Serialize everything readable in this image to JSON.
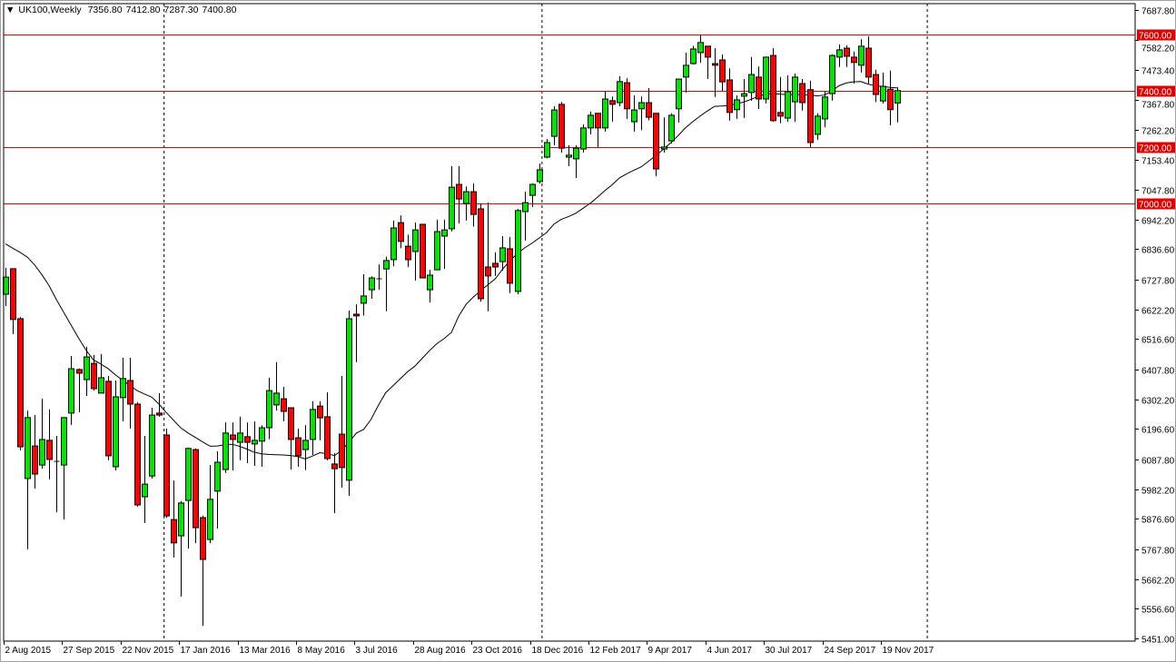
{
  "header": {
    "menu_icon": "triangle-down-icon",
    "symbol_period": "UK100,Weekly",
    "open": "7356.80",
    "high": "7412.80",
    "low": "7287.30",
    "close": "7400.80"
  },
  "colors": {
    "bull": "#00e600",
    "bear": "#ff0000",
    "level_line": "#e00000",
    "ma_line": "#000000",
    "grid_separator": "#000000"
  },
  "chart_data": {
    "type": "candlestick",
    "title": "UK100,Weekly",
    "ylim": [
      5451.0,
      7687.8
    ],
    "grid": false,
    "price_ticks": [
      "7687.80",
      "7582.20",
      "7473.40",
      "7367.80",
      "7262.20",
      "7153.40",
      "7047.80",
      "6942.20",
      "6836.60",
      "6727.80",
      "6622.20",
      "6516.60",
      "6407.80",
      "6302.20",
      "6196.60",
      "6087.80",
      "5982.20",
      "5876.60",
      "5767.80",
      "5662.20",
      "5556.60",
      "5451.00"
    ],
    "date_ticks": [
      "2 Aug 2015",
      "27 Sep 2015",
      "22 Nov 2015",
      "17 Jan 2016",
      "13 Mar 2016",
      "8 May 2016",
      "3 Jul 2016",
      "28 Aug 2016",
      "23 Oct 2016",
      "18 Dec 2016",
      "12 Feb 2017",
      "9 Apr 2017",
      "4 Jun 2017",
      "30 Jul 2017",
      "24 Sep 2017",
      "19 Nov 2017"
    ],
    "levels": [
      "7600.00",
      "7400.00",
      "7200.00",
      "7000.00"
    ],
    "ohlc": [
      [
        6676,
        6770,
        6634,
        6737
      ],
      [
        6767,
        6767,
        6534,
        6586
      ],
      [
        6589,
        6595,
        6120,
        6133
      ],
      [
        6020,
        6262,
        5768,
        6237
      ],
      [
        6136,
        6246,
        5984,
        6036
      ],
      [
        6068,
        6304,
        6055,
        6159
      ],
      [
        6156,
        6266,
        6017,
        6088
      ],
      [
        6081,
        6172,
        5900,
        6081
      ],
      [
        6068,
        6237,
        5874,
        6237
      ],
      [
        6253,
        6456,
        6211,
        6411
      ],
      [
        6408,
        6412,
        6256,
        6395
      ],
      [
        6372,
        6489,
        6314,
        6453
      ],
      [
        6430,
        6460,
        6333,
        6340
      ],
      [
        6324,
        6463,
        6324,
        6379
      ],
      [
        6366,
        6385,
        6085,
        6101
      ],
      [
        6062,
        6369,
        6049,
        6311
      ],
      [
        6308,
        6450,
        6223,
        6376
      ],
      [
        6369,
        6450,
        6198,
        6285
      ],
      [
        6285,
        6292,
        5920,
        5926
      ],
      [
        5955,
        6172,
        5862,
        6000
      ],
      [
        6029,
        6272,
        6020,
        6246
      ],
      [
        6253,
        6324,
        6240,
        6246
      ],
      [
        6175,
        6198,
        5880,
        5887
      ],
      [
        5874,
        6013,
        5739,
        5791
      ],
      [
        5816,
        5940,
        5600,
        5933
      ],
      [
        5942,
        6130,
        5771,
        6127
      ],
      [
        6123,
        6127,
        5790,
        5845
      ],
      [
        5881,
        5888,
        5496,
        5732
      ],
      [
        5803,
        6068,
        5790,
        5946
      ],
      [
        5975,
        6117,
        5842,
        6078
      ],
      [
        6052,
        6220,
        6040,
        6182
      ],
      [
        6175,
        6220,
        6049,
        6159
      ],
      [
        6149,
        6240,
        6085,
        6182
      ],
      [
        6169,
        6220,
        6075,
        6149
      ],
      [
        6143,
        6223,
        6065,
        6156
      ],
      [
        6153,
        6210,
        6062,
        6201
      ],
      [
        6201,
        6379,
        6160,
        6333
      ],
      [
        6282,
        6434,
        6262,
        6324
      ],
      [
        6304,
        6346,
        6224,
        6259
      ],
      [
        6272,
        6272,
        6052,
        6159
      ],
      [
        6165,
        6198,
        6062,
        6101
      ],
      [
        6123,
        6210,
        6050,
        6156
      ],
      [
        6159,
        6295,
        6104,
        6266
      ],
      [
        6278,
        6295,
        6156,
        6236
      ],
      [
        6240,
        6327,
        6085,
        6091
      ],
      [
        6072,
        6110,
        5897,
        6055
      ],
      [
        6178,
        6385,
        5988,
        6059
      ],
      [
        6014,
        6618,
        5958,
        6589
      ],
      [
        6605,
        6640,
        6434,
        6599
      ],
      [
        6644,
        6747,
        6600,
        6670
      ],
      [
        6692,
        6740,
        6660,
        6734
      ],
      [
        6731,
        6782,
        6692,
        6731
      ],
      [
        6766,
        6810,
        6615,
        6796
      ],
      [
        6799,
        6938,
        6776,
        6912
      ],
      [
        6931,
        6957,
        6840,
        6864
      ],
      [
        6847,
        6888,
        6773,
        6799
      ],
      [
        6828,
        6931,
        6725,
        6905
      ],
      [
        6925,
        6925,
        6734,
        6734
      ],
      [
        6692,
        6763,
        6647,
        6744
      ],
      [
        6763,
        6941,
        6763,
        6899
      ],
      [
        6883,
        6941,
        6766,
        6905
      ],
      [
        6909,
        7132,
        6900,
        7057
      ],
      [
        7067,
        7132,
        6928,
        7015
      ],
      [
        6999,
        7060,
        6938,
        7041
      ],
      [
        7041,
        7070,
        6917,
        6960
      ],
      [
        6980,
        7000,
        6650,
        6660
      ],
      [
        6773,
        7002,
        6615,
        6741
      ],
      [
        6786,
        6825,
        6741,
        6773
      ],
      [
        6792,
        6883,
        6760,
        6841
      ],
      [
        6838,
        6880,
        6680,
        6715
      ],
      [
        6686,
        6980,
        6676,
        6974
      ],
      [
        6970,
        7041,
        6867,
        7002
      ],
      [
        7028,
        7070,
        6986,
        7067
      ],
      [
        7077,
        7141,
        7070,
        7119
      ],
      [
        7164,
        7229,
        7160,
        7216
      ],
      [
        7238,
        7345,
        7206,
        7332
      ],
      [
        7352,
        7360,
        7180,
        7196
      ],
      [
        7164,
        7206,
        7132,
        7171
      ],
      [
        7158,
        7206,
        7090,
        7196
      ],
      [
        7193,
        7280,
        7180,
        7268
      ],
      [
        7268,
        7326,
        7245,
        7313
      ],
      [
        7320,
        7320,
        7196,
        7268
      ],
      [
        7268,
        7400,
        7255,
        7371
      ],
      [
        7365,
        7380,
        7290,
        7352
      ],
      [
        7358,
        7452,
        7345,
        7433
      ],
      [
        7429,
        7445,
        7300,
        7336
      ],
      [
        7290,
        7384,
        7255,
        7332
      ],
      [
        7336,
        7380,
        7260,
        7358
      ],
      [
        7358,
        7410,
        7295,
        7306
      ],
      [
        7320,
        7320,
        7096,
        7122
      ],
      [
        7193,
        7306,
        7180,
        7200
      ],
      [
        7222,
        7320,
        7212,
        7313
      ],
      [
        7336,
        7442,
        7287,
        7442
      ],
      [
        7449,
        7536,
        7394,
        7491
      ],
      [
        7497,
        7560,
        7494,
        7549
      ],
      [
        7536,
        7601,
        7500,
        7572
      ],
      [
        7559,
        7559,
        7442,
        7520
      ],
      [
        7497,
        7552,
        7378,
        7491
      ],
      [
        7510,
        7530,
        7400,
        7432
      ],
      [
        7439,
        7480,
        7294,
        7323
      ],
      [
        7333,
        7384,
        7300,
        7368
      ],
      [
        7381,
        7442,
        7303,
        7390
      ],
      [
        7394,
        7520,
        7365,
        7458
      ],
      [
        7449,
        7487,
        7335,
        7371
      ],
      [
        7371,
        7520,
        7355,
        7520
      ],
      [
        7526,
        7552,
        7290,
        7294
      ],
      [
        7323,
        7449,
        7285,
        7310
      ],
      [
        7303,
        7455,
        7290,
        7397
      ],
      [
        7361,
        7462,
        7290,
        7449
      ],
      [
        7426,
        7442,
        7330,
        7358
      ],
      [
        7404,
        7436,
        7197,
        7216
      ],
      [
        7245,
        7320,
        7226,
        7310
      ],
      [
        7300,
        7400,
        7270,
        7378
      ],
      [
        7390,
        7530,
        7365,
        7526
      ],
      [
        7520,
        7565,
        7485,
        7546
      ],
      [
        7552,
        7562,
        7485,
        7523
      ],
      [
        7520,
        7540,
        7426,
        7501
      ],
      [
        7491,
        7584,
        7465,
        7559
      ],
      [
        7552,
        7594,
        7426,
        7449
      ],
      [
        7458,
        7475,
        7360,
        7387
      ],
      [
        7364,
        7465,
        7355,
        7416
      ],
      [
        7406,
        7472,
        7277,
        7333
      ],
      [
        7356.8,
        7412.8,
        7287.3,
        7400.8
      ]
    ],
    "moving_average": [
      6855,
      6840,
      6825,
      6808,
      6780,
      6745,
      6705,
      6655,
      6610,
      6565,
      6520,
      6478,
      6443,
      6428,
      6412,
      6390,
      6370,
      6352,
      6333,
      6321,
      6310,
      6285,
      6255,
      6227,
      6200,
      6182,
      6166,
      6150,
      6135,
      6136,
      6140,
      6142,
      6135,
      6125,
      6114,
      6108,
      6106,
      6105,
      6104,
      6102,
      6098,
      6090,
      6100,
      6112,
      6108,
      6102,
      6120,
      6150,
      6182,
      6195,
      6230,
      6280,
      6325,
      6350,
      6375,
      6400,
      6420,
      6448,
      6475,
      6500,
      6518,
      6540,
      6598,
      6640,
      6666,
      6688,
      6710,
      6731,
      6765,
      6795,
      6820,
      6841,
      6857,
      6876,
      6895,
      6925,
      6942,
      6952,
      6964,
      6982,
      7000,
      7022,
      7045,
      7066,
      7090,
      7105,
      7118,
      7130,
      7150,
      7170,
      7192,
      7215,
      7240,
      7268,
      7290,
      7310,
      7328,
      7345,
      7346,
      7348,
      7354,
      7360,
      7370,
      7380,
      7389,
      7390,
      7388,
      7387,
      7387,
      7387,
      7386,
      7382,
      7385,
      7398,
      7418,
      7428,
      7432,
      7433,
      7424,
      7418,
      7416,
      7412,
      7410
    ]
  }
}
